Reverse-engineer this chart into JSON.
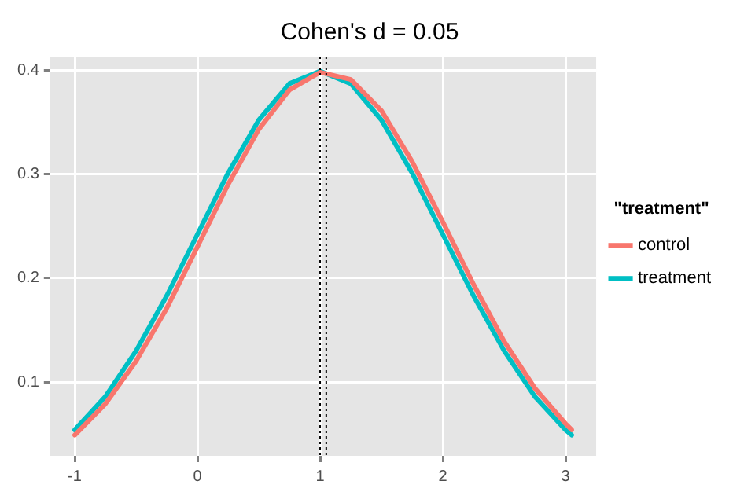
{
  "chart_data": {
    "type": "line",
    "title": "Cohen's d = 0.05",
    "legend_title": "\"treatment\"",
    "legend": "right",
    "grid": true,
    "marker": "none",
    "line_style": "solid",
    "x": [
      -1,
      -0.75,
      -0.5,
      -0.25,
      0,
      0.25,
      0.5,
      0.75,
      1,
      1.25,
      1.5,
      1.75,
      2,
      2.25,
      2.5,
      2.75,
      3,
      3.05
    ],
    "series": [
      {
        "name": "control",
        "color": "#f8766d",
        "values": [
          0.049,
          0.079,
          0.12,
          0.171,
          0.23,
          0.29,
          0.343,
          0.381,
          0.398,
          0.391,
          0.361,
          0.312,
          0.254,
          0.194,
          0.139,
          0.094,
          0.06,
          0.054
        ]
      },
      {
        "name": "treatment",
        "color": "#00bfc4",
        "values": [
          0.054,
          0.086,
          0.13,
          0.183,
          0.242,
          0.301,
          0.352,
          0.387,
          0.399,
          0.387,
          0.352,
          0.301,
          0.242,
          0.183,
          0.13,
          0.086,
          0.054,
          0.049
        ]
      }
    ],
    "xlim": [
      -1.2,
      3.25
    ],
    "xticks": [
      -1,
      0,
      1,
      2,
      3
    ],
    "ylim": [
      0.029,
      0.413
    ],
    "yticks": [
      0.1,
      0.2,
      0.3,
      0.4
    ],
    "ref_lines": [
      {
        "axis": "x",
        "value": 1,
        "color": "#000000",
        "line_style": "dotted"
      },
      {
        "axis": "x",
        "value": 1.05,
        "color": "#000000",
        "line_style": "dotted"
      }
    ]
  }
}
